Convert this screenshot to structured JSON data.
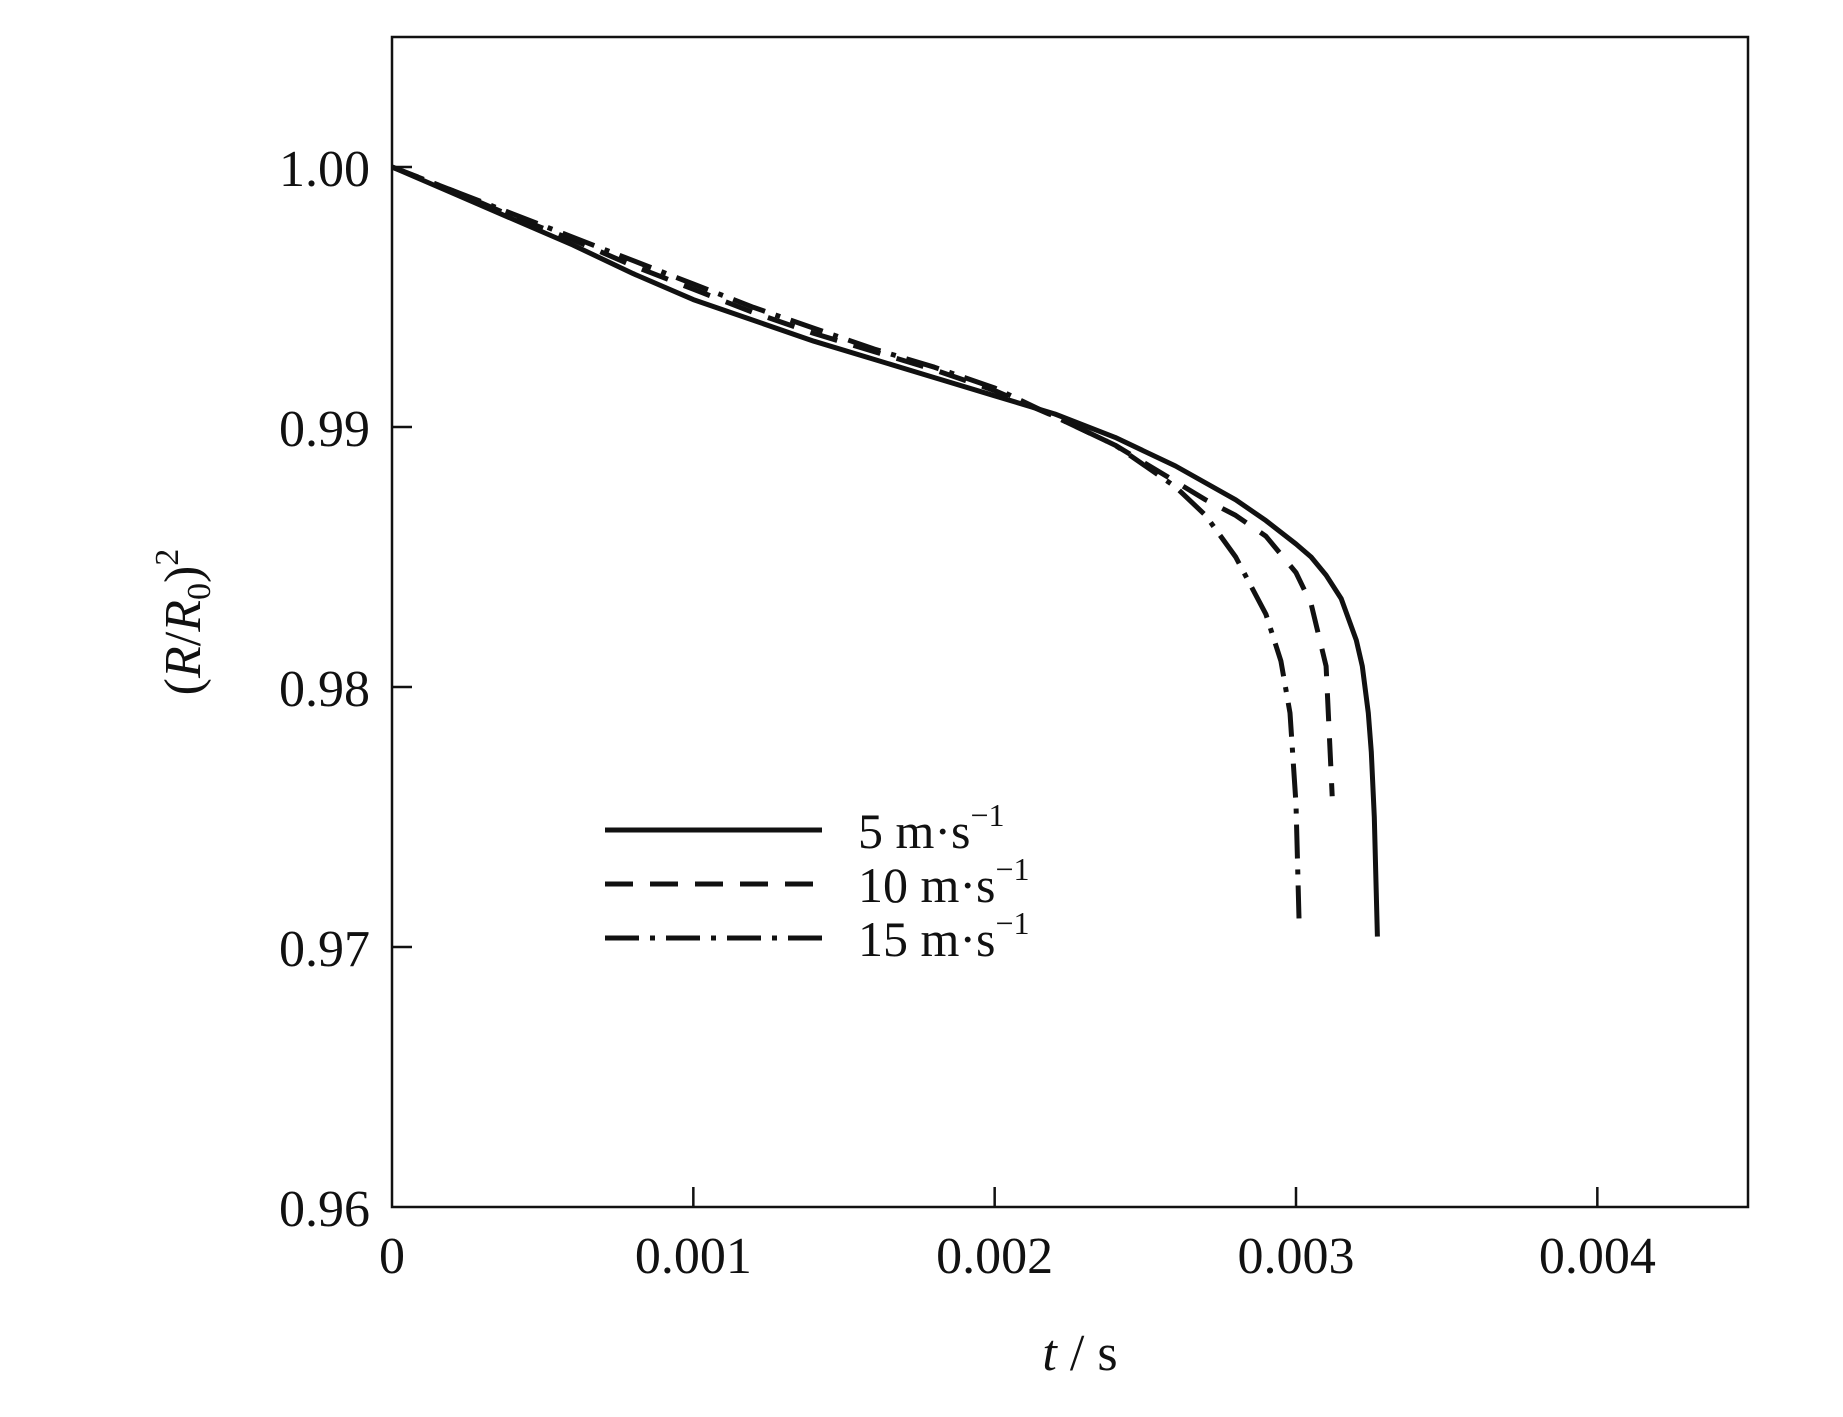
{
  "chart_data": {
    "type": "line",
    "title": "",
    "xlabel": {
      "var": "t",
      "rest": " / s"
    },
    "ylabel": {
      "open": "(",
      "r": "R",
      "slash": "/",
      "r0": "R",
      "sub": "0",
      "close": ")",
      "sup": "2"
    },
    "xlim": [
      0,
      0.0045
    ],
    "ylim": [
      0.96,
      1.005
    ],
    "xticks": [
      0,
      0.001,
      0.002,
      0.003,
      0.004
    ],
    "xtick_labels": [
      "0",
      "0.001",
      "0.002",
      "0.003",
      "0.004"
    ],
    "yticks": [
      0.96,
      0.97,
      0.98,
      0.99,
      1.0
    ],
    "ytick_labels": [
      "0.96",
      "0.97",
      "0.98",
      "0.99",
      "1.00"
    ],
    "grid": false,
    "legend_position": "lower-center",
    "series": [
      {
        "name": "5 m·s⁻¹",
        "legend": {
          "value": "5 m·s",
          "exp": "−1"
        },
        "style": "solid",
        "x": [
          0,
          0.0002,
          0.0004,
          0.0006,
          0.0008,
          0.001,
          0.0012,
          0.0014,
          0.0016,
          0.0018,
          0.002,
          0.0022,
          0.0024,
          0.0026,
          0.0028,
          0.0029,
          0.003,
          0.00305,
          0.0031,
          0.00315,
          0.0032,
          0.00322,
          0.00324,
          0.00325,
          0.00326,
          0.00327
        ],
        "y": [
          1.0,
          0.999,
          0.998,
          0.997,
          0.9959,
          0.9949,
          0.9941,
          0.9933,
          0.9926,
          0.9919,
          0.9912,
          0.9905,
          0.9896,
          0.9885,
          0.9872,
          0.9864,
          0.9855,
          0.985,
          0.9843,
          0.9834,
          0.9818,
          0.9808,
          0.979,
          0.9775,
          0.975,
          0.9704
        ]
      },
      {
        "name": "10 m·s⁻¹",
        "legend": {
          "value": "10 m·s",
          "exp": "−1"
        },
        "style": "dashed",
        "x": [
          0,
          0.0002,
          0.0004,
          0.0006,
          0.0008,
          0.001,
          0.0012,
          0.0014,
          0.0016,
          0.0018,
          0.002,
          0.0022,
          0.0024,
          0.0026,
          0.0027,
          0.0028,
          0.0029,
          0.003,
          0.00305,
          0.0031,
          0.00312
        ],
        "y": [
          1.0,
          0.9991,
          0.9981,
          0.9972,
          0.9962,
          0.9953,
          0.9944,
          0.9936,
          0.9929,
          0.9922,
          0.9914,
          0.9904,
          0.9893,
          0.9879,
          0.9872,
          0.9866,
          0.9858,
          0.9844,
          0.9832,
          0.9808,
          0.9758
        ]
      },
      {
        "name": "15 m·s⁻¹",
        "legend": {
          "value": "15 m·s",
          "exp": "−1"
        },
        "style": "dashdot",
        "x": [
          0,
          0.0002,
          0.0004,
          0.0006,
          0.0008,
          0.001,
          0.0012,
          0.0014,
          0.0016,
          0.0018,
          0.002,
          0.0022,
          0.0024,
          0.0026,
          0.0027,
          0.0028,
          0.0029,
          0.00295,
          0.00298,
          0.003,
          0.00301
        ],
        "y": [
          1.0,
          0.9991,
          0.9982,
          0.9973,
          0.9964,
          0.9955,
          0.9946,
          0.9938,
          0.993,
          0.9923,
          0.9915,
          0.9904,
          0.9893,
          0.9877,
          0.9866,
          0.985,
          0.9828,
          0.981,
          0.979,
          0.9755,
          0.9711
        ]
      }
    ]
  }
}
